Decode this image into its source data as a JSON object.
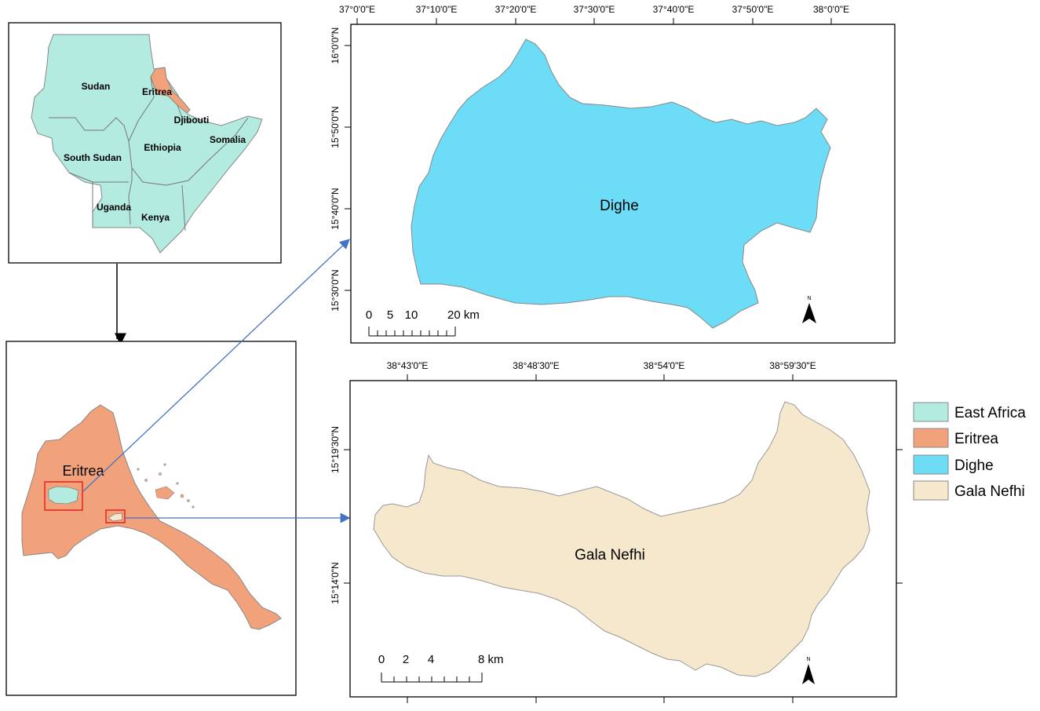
{
  "colors": {
    "east_africa": "#b3ebe0",
    "eritrea": "#f2a27a",
    "dighe": "#6ddcf7",
    "gala_nefhi": "#f6e8cc",
    "arrow_blue": "#4472c4",
    "highlight_red": "#e8231c"
  },
  "east_africa_map": {
    "countries": [
      "Sudan",
      "Eritrea",
      "Djibouti",
      "Ethiopia",
      "Somalia",
      "South Sudan",
      "Uganda",
      "Kenya"
    ]
  },
  "eritrea_map": {
    "label": "Eritrea"
  },
  "dighe_map": {
    "label": "Dighe",
    "top_ticks": [
      "37°0'0\"E",
      "37°10'0\"E",
      "37°20'0\"E",
      "37°30'0\"E",
      "37°40'0\"E",
      "37°50'0\"E",
      "38°0'0\"E"
    ],
    "left_ticks": [
      "16°0'0\"N",
      "15°50'0\"N",
      "15°40'0\"N",
      "15°30'0\"N"
    ],
    "scale_labels": [
      "0",
      "5",
      "10",
      "20 km"
    ],
    "north": "N"
  },
  "gala_map": {
    "label": "Gala Nefhi",
    "top_ticks": [
      "38°43'0\"E",
      "38°48'30\"E",
      "38°54'0\"E",
      "38°59'30\"E"
    ],
    "left_ticks": [
      "15°19'30\"N",
      "15°14'0\"N"
    ],
    "scale_labels": [
      "0",
      "2",
      "4",
      "8 km"
    ],
    "north": "N"
  },
  "legend": {
    "items": [
      {
        "label": "East Africa",
        "color": "#b3ebe0"
      },
      {
        "label": "Eritrea",
        "color": "#f2a27a"
      },
      {
        "label": "Dighe",
        "color": "#6ddcf7"
      },
      {
        "label": "Gala Nefhi",
        "color": "#f6e8cc"
      }
    ]
  }
}
